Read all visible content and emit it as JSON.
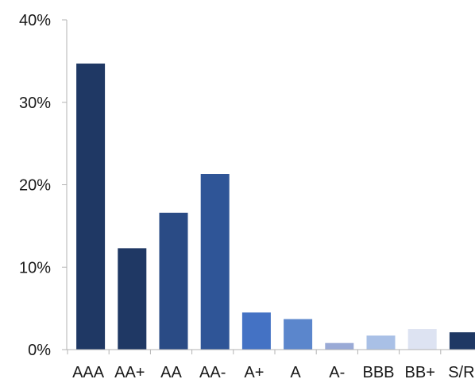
{
  "chart_data": {
    "type": "bar",
    "title": "",
    "xlabel": "",
    "ylabel": "",
    "categories": [
      "AAA",
      "AA+",
      "AA",
      "AA-",
      "A+",
      "A",
      "A-",
      "BBB",
      "BB+",
      "S/R"
    ],
    "values": [
      34.7,
      12.3,
      16.6,
      21.3,
      4.5,
      3.7,
      0.8,
      1.7,
      2.5,
      2.1
    ],
    "colors": [
      "#1f3864",
      "#1f3864",
      "#2a4b85",
      "#2f5597",
      "#4472c4",
      "#5b86cc",
      "#9aaad6",
      "#a9c0e6",
      "#dde3f2",
      "#1f3864"
    ],
    "ylim": [
      0,
      40
    ],
    "yticks": [
      0,
      10,
      20,
      30,
      40
    ],
    "ytick_labels": [
      "0%",
      "10%",
      "20%",
      "30%",
      "40%"
    ],
    "grid": false,
    "legend": "none"
  }
}
